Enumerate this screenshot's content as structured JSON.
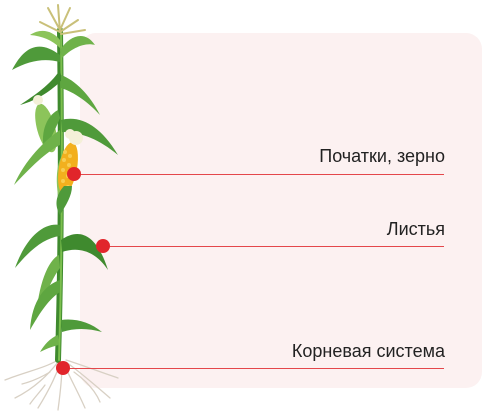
{
  "labels": [
    {
      "text": "Початки, зерно"
    },
    {
      "text": "Листья"
    },
    {
      "text": "Корневая система"
    }
  ],
  "colors": {
    "panel": "#fcf1f1",
    "marker": "#e1252b",
    "leader_line": "#e4474b",
    "leaf": "#4f9a3a",
    "leaf_light": "#8cc45a",
    "cob": "#f2b01e",
    "silk": "#f4f0d8",
    "root": "#d8d0c4"
  }
}
